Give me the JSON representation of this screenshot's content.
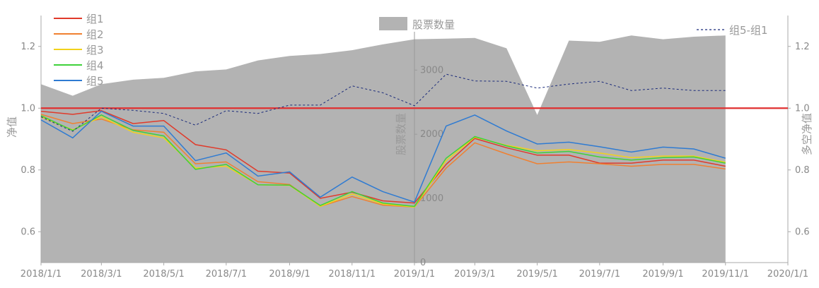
{
  "chart_data": {
    "type": "line",
    "title": "",
    "x": [
      "2018/1/1",
      "2018/2/1",
      "2018/3/1",
      "2018/4/1",
      "2018/5/1",
      "2018/6/1",
      "2018/7/1",
      "2018/8/1",
      "2018/9/1",
      "2018/10/1",
      "2018/11/1",
      "2018/12/1",
      "2019/1/1",
      "2019/2/1",
      "2019/3/1",
      "2019/4/1",
      "2019/5/1",
      "2019/6/1",
      "2019/7/1",
      "2019/8/1",
      "2019/9/1",
      "2019/10/1",
      "2019/11/1"
    ],
    "x_ticks": [
      "2018/1/1",
      "2018/3/1",
      "2018/5/1",
      "2018/7/1",
      "2018/9/1",
      "2018/11/1",
      "2019/1/1",
      "2019/3/1",
      "2019/5/1",
      "2019/7/1",
      "2019/9/1",
      "2019/11/1",
      "2020/1/1"
    ],
    "x_range": [
      "2018/1/1",
      "2020/1/1"
    ],
    "left_axis": {
      "label": "净值",
      "range": [
        0.5,
        1.3
      ],
      "ticks": [
        "0.6",
        "0.8",
        "1.0",
        "1.2"
      ]
    },
    "middle_axis": {
      "label": "股票数量",
      "range": [
        0,
        3850
      ],
      "ticks": [
        "0",
        "1000",
        "2000",
        "3000"
      ]
    },
    "right_axis": {
      "label": "多空净值",
      "range": [
        0.5,
        1.3
      ],
      "ticks": [
        "0.6",
        "0.8",
        "1.0",
        "1.2"
      ]
    },
    "reference_line": {
      "value": 1.0,
      "color": "#e03030"
    },
    "area_series": {
      "name": "股票数量",
      "color": "#b3b3b3",
      "values": [
        2780,
        2600,
        2780,
        2850,
        2880,
        2980,
        3010,
        3150,
        3220,
        3250,
        3310,
        3400,
        3480,
        3490,
        3500,
        3340,
        2300,
        3460,
        3440,
        3540,
        3480,
        3520,
        3540
      ]
    },
    "series": [
      {
        "name": "组1",
        "color": "#e03a2a",
        "axis": "left",
        "style": "solid",
        "values": [
          0.99,
          0.98,
          0.992,
          0.95,
          0.96,
          0.882,
          0.865,
          0.796,
          0.79,
          0.708,
          0.728,
          0.7,
          0.693,
          0.818,
          0.902,
          0.872,
          0.848,
          0.848,
          0.822,
          0.822,
          0.832,
          0.832,
          0.812
        ]
      },
      {
        "name": "组2",
        "color": "#f08030",
        "axis": "left",
        "style": "solid",
        "values": [
          0.98,
          0.95,
          0.965,
          0.93,
          0.922,
          0.82,
          0.826,
          0.762,
          0.753,
          0.682,
          0.714,
          0.686,
          0.68,
          0.806,
          0.888,
          0.852,
          0.82,
          0.826,
          0.82,
          0.812,
          0.818,
          0.818,
          0.803
        ]
      },
      {
        "name": "组3",
        "color": "#f2d21a",
        "axis": "left",
        "style": "solid",
        "values": [
          0.972,
          0.93,
          0.972,
          0.922,
          0.904,
          0.806,
          0.812,
          0.752,
          0.75,
          0.682,
          0.722,
          0.69,
          0.68,
          0.83,
          0.906,
          0.88,
          0.862,
          0.866,
          0.855,
          0.84,
          0.845,
          0.845,
          0.825
        ]
      },
      {
        "name": "组4",
        "color": "#3fd13a",
        "axis": "left",
        "style": "solid",
        "values": [
          0.976,
          0.928,
          0.978,
          0.928,
          0.91,
          0.802,
          0.818,
          0.752,
          0.751,
          0.685,
          0.73,
          0.693,
          0.682,
          0.838,
          0.908,
          0.878,
          0.855,
          0.86,
          0.842,
          0.832,
          0.84,
          0.842,
          0.822
        ]
      },
      {
        "name": "组5",
        "color": "#2f7bd2",
        "axis": "left",
        "style": "solid",
        "values": [
          0.962,
          0.904,
          0.99,
          0.942,
          0.942,
          0.83,
          0.855,
          0.78,
          0.794,
          0.712,
          0.777,
          0.73,
          0.696,
          0.942,
          0.978,
          0.926,
          0.884,
          0.89,
          0.875,
          0.858,
          0.874,
          0.868,
          0.838
        ]
      },
      {
        "name": "组5-组1",
        "color": "#1a2a7a",
        "axis": "right",
        "style": "dashed",
        "values": [
          0.972,
          0.925,
          1.0,
          0.993,
          0.983,
          0.945,
          0.992,
          0.983,
          1.01,
          1.01,
          1.072,
          1.05,
          1.008,
          1.11,
          1.088,
          1.087,
          1.065,
          1.078,
          1.087,
          1.057,
          1.065,
          1.057,
          1.057
        ]
      }
    ],
    "grid": false,
    "legend_placement": "top-left and top-center and top-right"
  }
}
